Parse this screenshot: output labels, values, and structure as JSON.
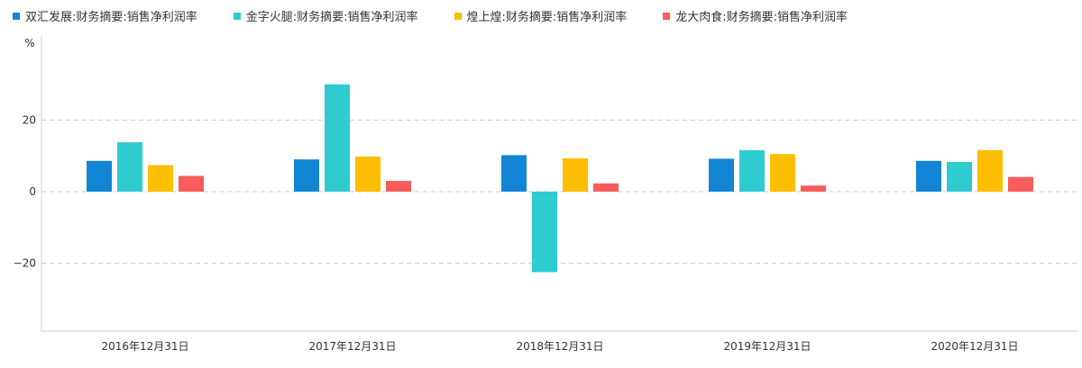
{
  "chart_data": {
    "type": "bar",
    "unit_label": "%",
    "categories": [
      "2016年12月31日",
      "2017年12月31日",
      "2018年12月31日",
      "2019年12月31日",
      "2020年12月31日"
    ],
    "series": [
      {
        "name": "双汇发展:财务摘要:销售净利润率",
        "color": "#1385d5",
        "values": [
          8.6,
          9.0,
          10.2,
          9.2,
          8.6
        ]
      },
      {
        "name": "金字火腿:财务摘要:销售净利润率",
        "color": "#2ecbd0",
        "values": [
          13.8,
          30.0,
          -22.5,
          11.6,
          8.3
        ]
      },
      {
        "name": "煌上煌:财务摘要:销售净利润率",
        "color": "#fdbd00",
        "values": [
          7.4,
          9.8,
          9.3,
          10.5,
          11.6
        ]
      },
      {
        "name": "龙大肉食:财务摘要:销售净利润率",
        "color": "#fa5b5b",
        "values": [
          4.4,
          3.0,
          2.3,
          1.7,
          4.1
        ]
      }
    ],
    "yticks": [
      -20,
      0,
      20
    ],
    "ylim": [
      -39,
      41
    ],
    "grid": true,
    "legend_position": "top-left"
  }
}
